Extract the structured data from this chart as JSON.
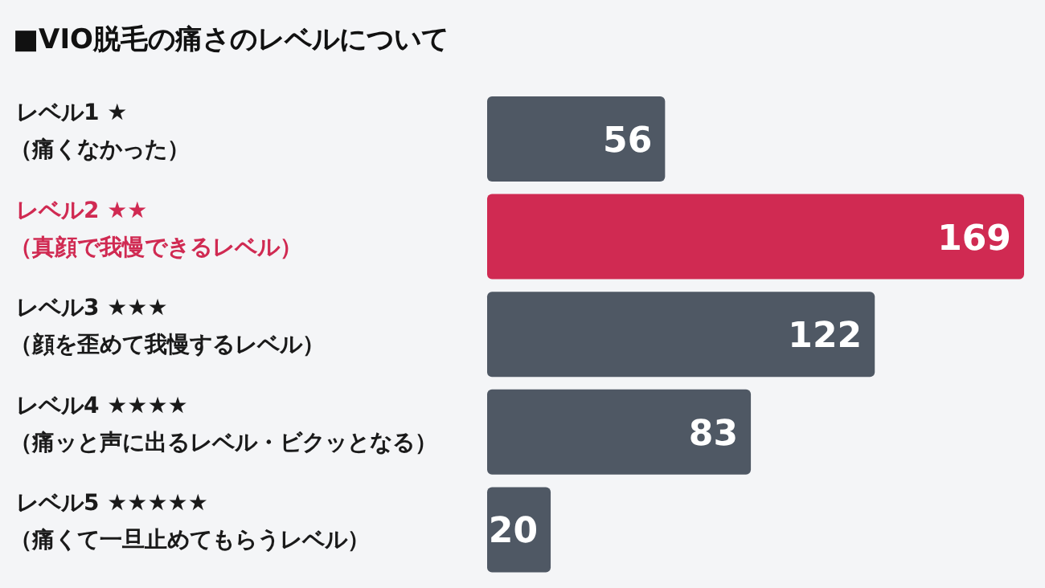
{
  "chart_data": {
    "type": "bar",
    "orientation": "horizontal",
    "relative": false,
    "title": "■VIO脱毛の痛さのレベルについて",
    "categories": [
      "レベル1 ★\n（痛くなかった）",
      "レベル2 ★★\n（真顔で我慢できるレベル）",
      "レベル3 ★★★\n（顔を歪めて我慢するレベル）",
      "レベル4 ★★★★\n（痛ッと声に出るレベル・ビクッとなる）",
      "レベル5 ★★★★★\n（痛くて一旦止めてもらうレベル）"
    ],
    "values": [
      56,
      169,
      122,
      83,
      20
    ],
    "colors": [
      "#4f5864",
      "#d02a52",
      "#4f5864",
      "#4f5864",
      "#4f5864"
    ],
    "data_labels": true
  }
}
